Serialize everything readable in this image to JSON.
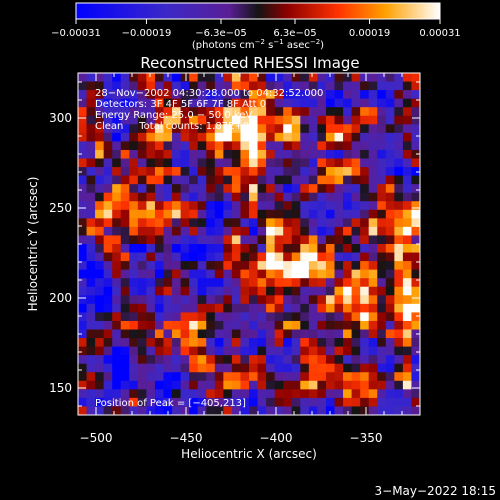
{
  "chart_data": {
    "type": "heatmap",
    "title": "Reconstructed RHESSI Image",
    "xlabel": "Heliocentric X (arcsec)",
    "ylabel": "Heliocentric Y (arcsec)",
    "xlim": [
      -510,
      -320
    ],
    "ylim": [
      135,
      325
    ],
    "x_ticks": [
      -500,
      -450,
      -400,
      -350
    ],
    "x_tick_labels": [
      "−500",
      "−450",
      "−400",
      "−350"
    ],
    "y_ticks": [
      150,
      200,
      250,
      300
    ],
    "y_tick_labels": [
      "150",
      "200",
      "250",
      "300"
    ],
    "colorbar": {
      "range": [
        -0.00031,
        0.00031
      ],
      "ticks": [
        -0.00031,
        -0.00019,
        -6.3e-05,
        6.3e-05,
        0.00019,
        0.00031
      ],
      "tick_labels": [
        "−0.00031",
        "−0.00019",
        "−6.3e−05",
        "6.3e−05",
        "0.00019",
        "0.00031"
      ],
      "label_main": "(photons cm",
      "label_exp1": "−2",
      "label_mid": " s",
      "label_exp2": "−1",
      "label_mid2": " asec",
      "label_exp3": "−2",
      "label_end": ")"
    },
    "annotations": [
      "28−Nov−2002 04:30:28.000 to 04:32:52.000",
      "Detectors: 3F 4F 5F 6F 7F 8F Att 0",
      "Energy Range: 25.0 − 50.0 keV",
      "Clean     Total counts: 1.87E+03"
    ],
    "peak_label": "Position of Peak = [−405,213]",
    "grid_size": 40
  },
  "footer": {
    "date": "3−May−2022 18:15"
  }
}
